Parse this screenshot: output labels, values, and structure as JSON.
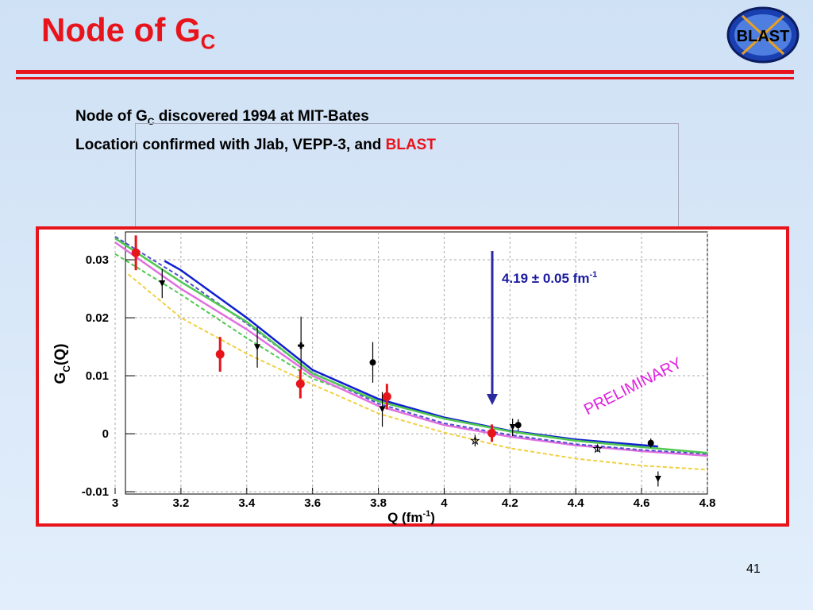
{
  "slide": {
    "title": [
      "Node of G",
      "C"
    ],
    "lines": [
      [
        "Node of G",
        "C",
        " discovered 1994 at MIT-Bates"
      ],
      [
        "Location confirmed with Jlab, VEPP-3, and ",
        "BLAST"
      ]
    ],
    "page_number": "41",
    "logo": "BLAST"
  },
  "chart_data": {
    "type": "scatter",
    "xlim": [
      3,
      4.8
    ],
    "xticks": [
      3,
      3.2,
      3.4,
      3.6,
      3.8,
      4,
      4.2,
      4.4,
      4.6,
      4.8
    ],
    "ylim": [
      -0.0104,
      0.0348
    ],
    "yticks": [
      0.03,
      0.02,
      0.01,
      0,
      -0.01
    ],
    "grid": true,
    "x_label": [
      "Q (fm",
      "-1",
      ")"
    ],
    "y_label": [
      "G",
      "C",
      "(Q)"
    ],
    "annotation": [
      "4.19 ± 0.05 fm",
      "-1"
    ],
    "watermark": "PRELIMINARY",
    "series": [
      {
        "type": "line",
        "color": "#f0d040",
        "dash": true,
        "x": [
          3.04,
          3.2,
          3.4,
          3.6,
          3.8,
          4,
          4.2,
          4.4,
          4.6,
          4.8
        ],
        "values": [
          0.0275,
          0.02,
          0.0138,
          0.0085,
          0.0035,
          0.0002,
          -0.0025,
          -0.0043,
          -0.0055,
          -0.0062
        ]
      },
      {
        "type": "line",
        "color": "#50c850",
        "dash": true,
        "x": [
          3,
          3.2,
          3.4,
          3.6,
          3.7
        ],
        "values": [
          0.031,
          0.024,
          0.0165,
          0.0095,
          0.0075
        ]
      },
      {
        "type": "line",
        "color": "#e070e0",
        "dash": false,
        "x": [
          3,
          3.2,
          3.4,
          3.6,
          3.8,
          4,
          4.2,
          4.4,
          4.6,
          4.8
        ],
        "values": [
          0.033,
          0.025,
          0.018,
          0.01,
          0.0048,
          0.0015,
          -0.0005,
          -0.002,
          -0.003,
          -0.0038
        ]
      },
      {
        "type": "line",
        "color": "#5050d0",
        "dash": true,
        "x": [
          3,
          3.2,
          3.4,
          3.6,
          3.8,
          4,
          4.2,
          4.4,
          4.6,
          4.8
        ],
        "values": [
          0.034,
          0.027,
          0.019,
          0.0105,
          0.0052,
          0.0018,
          -0.0002,
          -0.0018,
          -0.0028,
          -0.0035
        ]
      },
      {
        "type": "line",
        "color": "#1020d0",
        "dash": false,
        "x": [
          3.15,
          3.2,
          3.4,
          3.6,
          3.8,
          4,
          4.2,
          4.4,
          4.65
        ],
        "values": [
          0.0298,
          0.0282,
          0.02,
          0.011,
          0.006,
          0.0028,
          0.0005,
          -0.001,
          -0.0022
        ]
      },
      {
        "type": "line",
        "color": "#50c850",
        "dash": false,
        "x": [
          3,
          3.2,
          3.4,
          3.6,
          3.8,
          4,
          4.2,
          4.4,
          4.6,
          4.8
        ],
        "values": [
          0.0337,
          0.0262,
          0.0193,
          0.0104,
          0.0056,
          0.0026,
          0.0004,
          -0.0012,
          -0.0023,
          -0.0033
        ]
      },
      {
        "type": "points",
        "marker": "triangle",
        "color": "#000000",
        "x": [
          3.143,
          3.432,
          3.812,
          4.208,
          4.65
        ],
        "values": [
          0.0259,
          0.0149,
          0.0042,
          0.0011,
          -0.0078
        ],
        "errors": [
          0.0025,
          0.0035,
          0.003,
          0.0015,
          0.0013
        ]
      },
      {
        "type": "points",
        "marker": "circle",
        "color": "#000000",
        "x": [
          3.783,
          4.225,
          4.628
        ],
        "values": [
          0.0123,
          0.0015,
          -0.0016
        ],
        "errors": [
          0.0035,
          0.001,
          0.0008
        ]
      },
      {
        "type": "points",
        "marker": "cross",
        "color": "#000000",
        "x": [
          3.565
        ],
        "values": [
          0.0152
        ],
        "errors": [
          0.005
        ]
      },
      {
        "type": "points",
        "marker": "star",
        "color": "#000000",
        "x": [
          4.094,
          4.466
        ],
        "values": [
          -0.0012,
          -0.0026
        ],
        "errors": [
          0.001,
          0.0005
        ]
      },
      {
        "type": "points",
        "marker": "circle",
        "color": "#e8141c",
        "x": [
          3.063,
          3.319,
          3.563,
          3.826,
          4.145
        ],
        "values": [
          0.0312,
          0.0137,
          0.0086,
          0.0064,
          0.0001
        ],
        "errors": [
          0.003,
          0.003,
          0.0025,
          0.0022,
          0.0015
        ]
      }
    ]
  }
}
